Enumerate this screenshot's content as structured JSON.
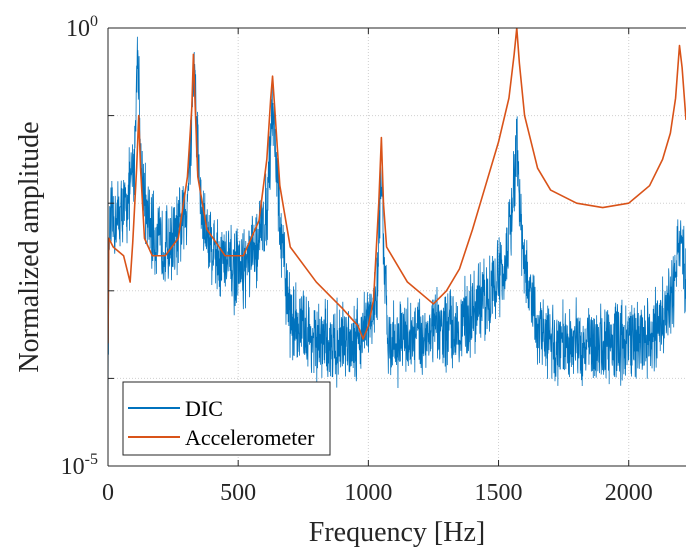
{
  "chart_data": {
    "type": "line",
    "xlabel": "Frequency [Hz]",
    "ylabel": "Normalized amplitude",
    "xlim": [
      0,
      2220
    ],
    "ylim_log10": [
      -5,
      0
    ],
    "yscale": "log",
    "grid": true,
    "legend_placement": "bottom-left",
    "x_ticks": [
      {
        "value": 0,
        "label": "0"
      },
      {
        "value": 500,
        "label": "500"
      },
      {
        "value": 1000,
        "label": "1000"
      },
      {
        "value": 1500,
        "label": "1500"
      },
      {
        "value": 2000,
        "label": "2000"
      }
    ],
    "y_ticks": [
      {
        "value": 0,
        "base": "10",
        "exp": "0"
      },
      {
        "value": -5,
        "base": "10",
        "exp": "-5"
      }
    ],
    "series": [
      {
        "name": "DIC",
        "color": "#0072BD",
        "noisy": true,
        "envelope": [
          [
            0,
            -4.2
          ],
          [
            5,
            -2.3
          ],
          [
            30,
            -2.2
          ],
          [
            70,
            -2.05
          ],
          [
            100,
            -1.6
          ],
          [
            115,
            -0.1
          ],
          [
            125,
            -1.5
          ],
          [
            150,
            -2.2
          ],
          [
            200,
            -2.5
          ],
          [
            260,
            -2.4
          ],
          [
            300,
            -2.1
          ],
          [
            320,
            -1.2
          ],
          [
            330,
            -0.35
          ],
          [
            340,
            -1.1
          ],
          [
            360,
            -2.2
          ],
          [
            420,
            -2.6
          ],
          [
            500,
            -2.8
          ],
          [
            560,
            -2.6
          ],
          [
            610,
            -2.1
          ],
          [
            630,
            -0.9
          ],
          [
            640,
            -1.2
          ],
          [
            660,
            -2.3
          ],
          [
            700,
            -3.3
          ],
          [
            800,
            -3.6
          ],
          [
            900,
            -3.6
          ],
          [
            970,
            -3.5
          ],
          [
            1030,
            -3.2
          ],
          [
            1050,
            -1.6
          ],
          [
            1060,
            -2.8
          ],
          [
            1080,
            -3.6
          ],
          [
            1200,
            -3.5
          ],
          [
            1350,
            -3.4
          ],
          [
            1450,
            -3.1
          ],
          [
            1530,
            -2.7
          ],
          [
            1560,
            -1.8
          ],
          [
            1570,
            -1.3
          ],
          [
            1580,
            -2.0
          ],
          [
            1600,
            -2.7
          ],
          [
            1640,
            -3.4
          ],
          [
            1700,
            -3.6
          ],
          [
            1900,
            -3.6
          ],
          [
            2100,
            -3.5
          ],
          [
            2170,
            -3.1
          ],
          [
            2190,
            -2.4
          ],
          [
            2200,
            -2.2
          ],
          [
            2215,
            -2.8
          ],
          [
            2220,
            -3.0
          ]
        ],
        "noise_amplitude": 0.55
      },
      {
        "name": "Accelerometer",
        "color": "#D95319",
        "noisy": false,
        "points": [
          [
            0,
            -3.6
          ],
          [
            3,
            -2.4
          ],
          [
            20,
            -2.5
          ],
          [
            60,
            -2.6
          ],
          [
            85,
            -2.9
          ],
          [
            95,
            -2.45
          ],
          [
            110,
            -1.6
          ],
          [
            118,
            -1.0
          ],
          [
            125,
            -1.6
          ],
          [
            140,
            -2.4
          ],
          [
            170,
            -2.6
          ],
          [
            220,
            -2.6
          ],
          [
            270,
            -2.4
          ],
          [
            305,
            -1.7
          ],
          [
            322,
            -0.9
          ],
          [
            328,
            -0.3
          ],
          [
            335,
            -0.9
          ],
          [
            345,
            -1.7
          ],
          [
            380,
            -2.3
          ],
          [
            450,
            -2.6
          ],
          [
            520,
            -2.6
          ],
          [
            580,
            -2.2
          ],
          [
            610,
            -1.5
          ],
          [
            625,
            -0.8
          ],
          [
            632,
            -0.55
          ],
          [
            640,
            -0.9
          ],
          [
            660,
            -1.8
          ],
          [
            700,
            -2.5
          ],
          [
            800,
            -2.9
          ],
          [
            900,
            -3.2
          ],
          [
            960,
            -3.4
          ],
          [
            980,
            -3.55
          ],
          [
            1000,
            -3.4
          ],
          [
            1020,
            -3.1
          ],
          [
            1040,
            -2.0
          ],
          [
            1050,
            -1.25
          ],
          [
            1058,
            -2.0
          ],
          [
            1070,
            -2.5
          ],
          [
            1150,
            -2.9
          ],
          [
            1250,
            -3.15
          ],
          [
            1300,
            -3.0
          ],
          [
            1350,
            -2.75
          ],
          [
            1400,
            -2.3
          ],
          [
            1450,
            -1.8
          ],
          [
            1500,
            -1.3
          ],
          [
            1540,
            -0.8
          ],
          [
            1560,
            -0.3
          ],
          [
            1570,
            0.0
          ],
          [
            1580,
            -0.4
          ],
          [
            1600,
            -1.0
          ],
          [
            1650,
            -1.6
          ],
          [
            1700,
            -1.85
          ],
          [
            1800,
            -2.0
          ],
          [
            1900,
            -2.05
          ],
          [
            2000,
            -2.0
          ],
          [
            2080,
            -1.8
          ],
          [
            2130,
            -1.5
          ],
          [
            2160,
            -1.2
          ],
          [
            2180,
            -0.8
          ],
          [
            2195,
            -0.2
          ],
          [
            2205,
            -0.45
          ],
          [
            2220,
            -1.05
          ]
        ]
      }
    ]
  }
}
